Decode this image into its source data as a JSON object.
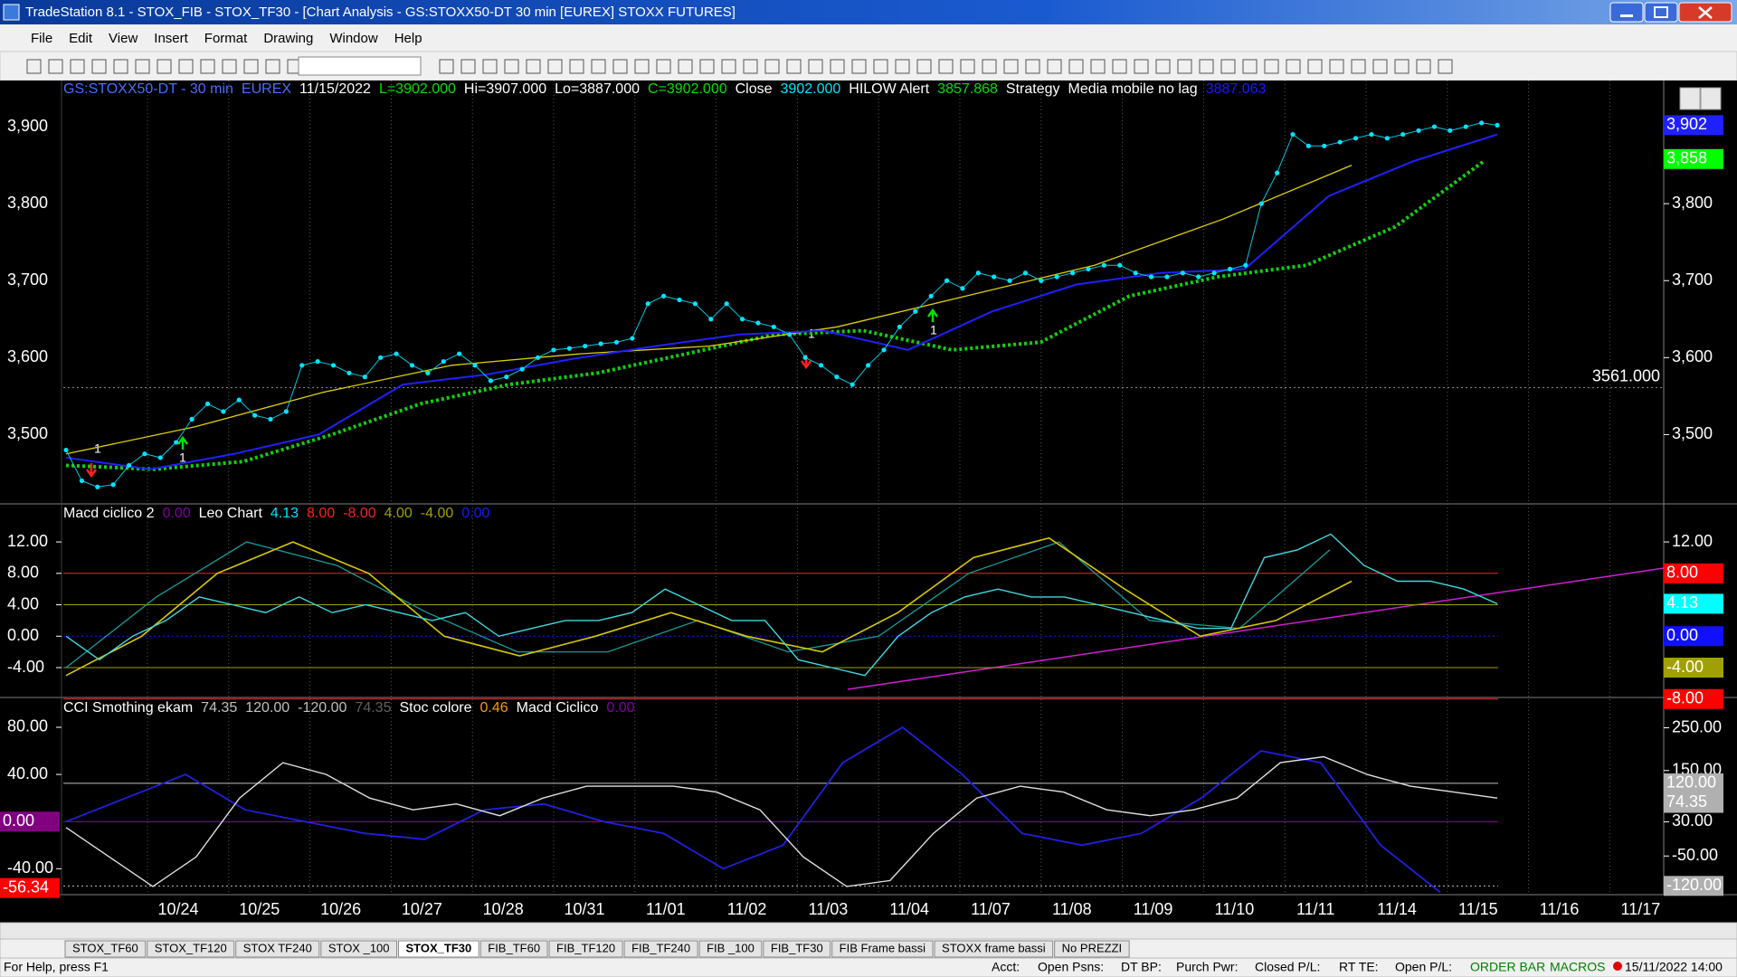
{
  "window": {
    "title": "TradeStation 8.1 - STOX_FIB - STOX_TF30 - [Chart Analysis - GS:STOXX50-DT  30 min  [EUREX] STOXX FUTURES]",
    "menus": [
      "File",
      "Edit",
      "View",
      "Insert",
      "Format",
      "Drawing",
      "Window",
      "Help"
    ]
  },
  "price_panel": {
    "header": [
      {
        "text": "GS:STOXX50-DT - 30 min",
        "color": "#4a6cff"
      },
      {
        "text": "EUREX",
        "color": "#4a6cff"
      },
      {
        "text": "11/15/2022",
        "color": "#ffffff"
      },
      {
        "text": "L=3902.000",
        "color": "#00e000"
      },
      {
        "text": "Hi=3907.000",
        "color": "#ffffff"
      },
      {
        "text": "Lo=3887.000",
        "color": "#ffffff"
      },
      {
        "text": "C=3902.000",
        "color": "#00e000"
      },
      {
        "text": "Close",
        "color": "#ffffff"
      },
      {
        "text": "3902.000",
        "color": "#00e5ff"
      },
      {
        "text": "HILOW Alert",
        "color": "#ffffff"
      },
      {
        "text": "3857.868",
        "color": "#00e000"
      },
      {
        "text": "Strategy",
        "color": "#ffffff"
      },
      {
        "text": "Media mobile no lag",
        "color": "#ffffff"
      },
      {
        "text": "3887.063",
        "color": "#1a1aff"
      }
    ],
    "ylim": [
      3410,
      3960
    ],
    "yticks": [
      {
        "value": 3500,
        "label": "3,500"
      },
      {
        "value": 3600,
        "label": "3,600"
      },
      {
        "value": 3700,
        "label": "3,700"
      },
      {
        "value": 3800,
        "label": "3,800"
      },
      {
        "value": 3900,
        "label": "3,900"
      }
    ],
    "last_boxes": [
      {
        "value": 3902,
        "label": "3,902",
        "bg": "#2020ff",
        "fg": "#ffffff"
      },
      {
        "value": 3858,
        "label": "3,858",
        "bg": "#00ff00",
        "fg": "#000000"
      }
    ],
    "level": {
      "value": 3561,
      "label": "3561.000",
      "color": "#a8a800"
    },
    "signals": [
      "1",
      "1",
      "1",
      "1"
    ],
    "price": [
      3480,
      3440,
      3432,
      3435,
      3460,
      3475,
      3470,
      3490,
      3520,
      3540,
      3530,
      3545,
      3525,
      3520,
      3530,
      3590,
      3595,
      3590,
      3580,
      3575,
      3600,
      3605,
      3590,
      3580,
      3595,
      3605,
      3590,
      3570,
      3575,
      3585,
      3600,
      3610,
      3612,
      3615,
      3618,
      3620,
      3625,
      3670,
      3680,
      3675,
      3670,
      3650,
      3670,
      3650,
      3645,
      3640,
      3630,
      3600,
      3590,
      3575,
      3565,
      3590,
      3610,
      3640,
      3660,
      3680,
      3700,
      3690,
      3710,
      3705,
      3700,
      3710,
      3700,
      3705,
      3710,
      3715,
      3720,
      3720,
      3710,
      3705,
      3705,
      3710,
      3705,
      3710,
      3715,
      3720,
      3800,
      3840,
      3890,
      3875,
      3875,
      3880,
      3885,
      3890,
      3885,
      3890,
      3895,
      3900,
      3895,
      3900,
      3905,
      3902
    ],
    "ma_blue": [
      3470,
      3455,
      3475,
      3500,
      3565,
      3578,
      3598,
      3615,
      3630,
      3635,
      3610,
      3660,
      3695,
      3710,
      3715,
      3810,
      3855,
      3890
    ],
    "ma_yellow": [
      3475,
      3510,
      3555,
      3590,
      3605,
      3615,
      3640,
      3680,
      3720,
      3780,
      3850
    ],
    "ma_green": [
      3460,
      3455,
      3465,
      3500,
      3540,
      3565,
      3580,
      3605,
      3630,
      3635,
      3610,
      3620,
      3680,
      3705,
      3720,
      3770,
      3855
    ]
  },
  "macd_panel": {
    "header": [
      {
        "text": "Macd ciclico 2",
        "color": "#ffffff"
      },
      {
        "text": "0.00",
        "color": "#8000a0"
      },
      {
        "text": "Leo Chart",
        "color": "#ffffff"
      },
      {
        "text": "4.13",
        "color": "#00e5ff"
      },
      {
        "text": "8.00",
        "color": "#ff2020",
        "value": 8
      },
      {
        "text": "-8.00",
        "color": "#ff2020",
        "value": -8
      },
      {
        "text": "4.00",
        "color": "#a0a000",
        "value": 4
      },
      {
        "text": "-4.00",
        "color": "#a0a000",
        "value": -4
      },
      {
        "text": "0.00",
        "color": "#1a1aff",
        "value": 0
      }
    ],
    "ylim": [
      -7.8,
      16.5
    ],
    "yticks": [
      {
        "value": -4,
        "label": "-4.00"
      },
      {
        "value": 0,
        "label": "0.00"
      },
      {
        "value": 4,
        "label": "4.00"
      },
      {
        "value": 8,
        "label": "8.00"
      },
      {
        "value": 12,
        "label": "12.00"
      }
    ],
    "right_ticks": [
      {
        "value": 12,
        "label": "12.00"
      }
    ],
    "last_boxes": [
      {
        "value": 8,
        "label": "8.00",
        "bg": "#ff0000",
        "fg": "#000000"
      },
      {
        "value": 4.13,
        "label": "4.13",
        "bg": "#00ffff",
        "fg": "#000000"
      },
      {
        "value": 0,
        "label": "0.00",
        "bg": "#1010ff",
        "fg": "#000000"
      },
      {
        "value": -4,
        "label": "-4.00",
        "bg": "#a0a000",
        "fg": "#000000"
      },
      {
        "value": -8,
        "label": "-8.00",
        "bg": "#ff0000",
        "fg": "#000000"
      }
    ],
    "cyan": [
      0,
      -3,
      0,
      2,
      5,
      4,
      3,
      5,
      3,
      4,
      3,
      2,
      3,
      0,
      1,
      2,
      2,
      3,
      6,
      4,
      2,
      2,
      -3,
      -4,
      -5,
      0,
      3,
      5,
      6,
      5,
      5,
      4,
      3,
      2,
      1,
      1,
      10,
      11,
      13,
      9,
      7,
      7,
      6,
      4.13
    ],
    "yellow": [
      -5,
      0,
      8,
      12,
      8,
      0,
      -2.5,
      0,
      3,
      0,
      -2,
      3,
      10,
      12.5,
      6,
      0,
      2,
      7
    ],
    "teal": [
      -4,
      5,
      12,
      9,
      3,
      -2,
      -2,
      2,
      -2,
      0,
      8,
      12,
      2,
      1,
      11
    ]
  },
  "cci_panel": {
    "header": [
      {
        "text": "CCI Smothing ekam",
        "color": "#ffffff"
      },
      {
        "text": "74.35",
        "color": "#c0c0c0"
      },
      {
        "text": "120.00",
        "color": "#c0c0c0",
        "value": 120
      },
      {
        "text": "-120.00",
        "color": "#c0c0c0",
        "value": -120
      },
      {
        "text": "74.35",
        "color": "#606060"
      },
      {
        "text": "Stoc colore",
        "color": "#ffffff"
      },
      {
        "text": "0.46",
        "color": "#ff9900"
      },
      {
        "text": "Macd Ciclico",
        "color": "#ffffff"
      },
      {
        "text": "0.00",
        "color": "#8000a0",
        "value": 0
      }
    ],
    "ylim": [
      -62,
      103
    ],
    "yticks": [
      {
        "value": -40,
        "label": "-40.00"
      },
      {
        "value": 40,
        "label": "40.00"
      },
      {
        "value": 80,
        "label": "80.00"
      }
    ],
    "left_boxes": [
      {
        "value": 0,
        "label": "0.00",
        "bg": "#800080",
        "fg": "#ffffff"
      },
      {
        "value": -56.34,
        "label": "-56.34",
        "bg": "#ff0000",
        "fg": "#ffffff"
      }
    ],
    "y2lim": [
      -140.5,
      314.6
    ],
    "y2ticks": [
      {
        "value": -50,
        "label": "-50.00"
      },
      {
        "value": 30,
        "label": "30.00"
      },
      {
        "value": 150,
        "label": "150.00"
      },
      {
        "value": 250,
        "label": "250.00"
      }
    ],
    "right_boxes": [
      {
        "value": 120,
        "label": "120.00",
        "bg": "#b0b0b0",
        "fg": "#000000"
      },
      {
        "value": 74.35,
        "label": "74.35",
        "bg": "#b0b0b0",
        "fg": "#000000"
      },
      {
        "value": -120,
        "label": "-120.00",
        "bg": "#b0b0b0",
        "fg": "#000000"
      }
    ],
    "white": [
      -5,
      -30,
      -55,
      -30,
      20,
      50,
      40,
      20,
      10,
      15,
      5,
      20,
      30,
      30,
      30,
      25,
      10,
      -30,
      -55,
      -50,
      -10,
      20,
      30,
      25,
      10,
      5,
      10,
      20,
      50,
      55,
      40,
      30,
      25,
      20
    ],
    "blue": [
      0,
      20,
      40,
      10,
      0,
      -10,
      -15,
      10,
      15,
      0,
      -10,
      -40,
      -20,
      50,
      80,
      40,
      -10,
      -20,
      -10,
      20,
      60,
      50,
      -20,
      -60
    ]
  },
  "dates": [
    "10/24",
    "10/25",
    "10/26",
    "10/27",
    "10/28",
    "10/31",
    "11/01",
    "11/02",
    "11/03",
    "11/04",
    "11/07",
    "11/08",
    "11/09",
    "11/10",
    "11/11",
    "11/14",
    "11/15",
    "11/16",
    "11/17"
  ],
  "tabs": [
    "STOX_TF60",
    "STOX_TF120",
    "STOX TF240",
    "STOX _100",
    "STOX_TF30",
    "FIB_TF60",
    "FIB_TF120",
    "FIB_TF240",
    "FIB _100",
    "FIB_TF30",
    "FIB Frame bassi",
    "STOXX frame bassi",
    "No PREZZI"
  ],
  "active_tab": "STOX_TF30",
  "status": [
    "For Help, press F1",
    "Acct:",
    "Open Psns:",
    "DT BP:",
    "Purch Pwr:",
    "Closed P/L:",
    "RT TE:",
    "Open P/L:",
    "ORDER BAR",
    "MACROS",
    "15/11/2022 14:00"
  ]
}
